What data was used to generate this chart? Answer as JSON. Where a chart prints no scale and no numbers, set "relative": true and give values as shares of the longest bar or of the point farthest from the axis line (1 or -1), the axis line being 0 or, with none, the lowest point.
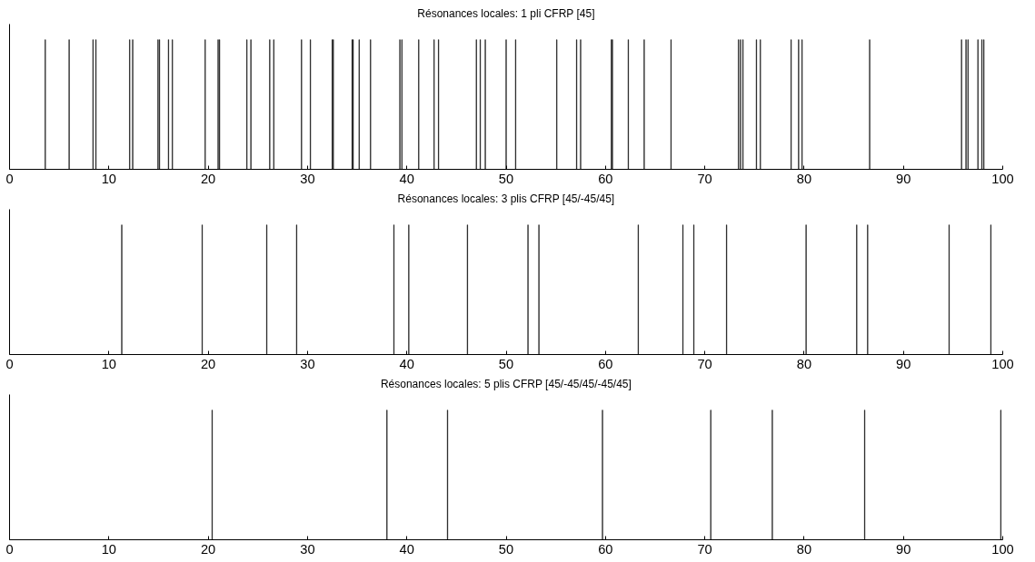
{
  "chart_data": [
    {
      "type": "bar",
      "title": "Résonances locales: 1 pli CFRP [45]",
      "relative": true,
      "color": "#000000",
      "xlim": [
        0,
        100
      ],
      "xticks": [
        0,
        10,
        20,
        30,
        40,
        50,
        60,
        70,
        80,
        90,
        100
      ],
      "tick_labels": "x",
      "x": [
        3.6,
        6.0,
        8.4,
        8.7,
        12.1,
        12.4,
        14.95,
        15.1,
        16.0,
        16.4,
        19.7,
        21.0,
        21.15,
        23.9,
        24.3,
        26.2,
        26.6,
        29.4,
        30.3,
        32.5,
        32.6,
        34.5,
        34.6,
        35.2,
        36.35,
        39.3,
        39.5,
        41.2,
        42.75,
        43.2,
        47.0,
        47.4,
        47.9,
        50.0,
        50.95,
        55.1,
        57.1,
        57.5,
        60.6,
        60.7,
        62.3,
        63.9,
        66.6,
        73.4,
        73.6,
        73.85,
        75.2,
        75.6,
        78.7,
        79.45,
        79.8,
        86.6,
        95.85,
        96.3,
        96.5,
        97.5,
        97.9,
        98.1
      ],
      "values": [
        1,
        1,
        1,
        1,
        1,
        1,
        1,
        1,
        1,
        1,
        1,
        1,
        1,
        1,
        1,
        1,
        1,
        1,
        1,
        1,
        1,
        1,
        1,
        1,
        1,
        1,
        1,
        1,
        1,
        1,
        1,
        1,
        1,
        1,
        1,
        1,
        1,
        1,
        1,
        1,
        1,
        1,
        1,
        1,
        1,
        1,
        1,
        1,
        1,
        1,
        1,
        1,
        1,
        1,
        1,
        1,
        1,
        1
      ]
    },
    {
      "type": "bar",
      "title": "Résonances locales: 3 plis CFRP [45/-45/45]",
      "relative": true,
      "color": "#000000",
      "xlim": [
        0,
        100
      ],
      "xticks": [
        0,
        10,
        20,
        30,
        40,
        50,
        60,
        70,
        80,
        90,
        100
      ],
      "tick_labels": "x",
      "x": [
        11.3,
        19.4,
        25.9,
        28.9,
        38.7,
        40.2,
        46.1,
        52.2,
        53.3,
        63.3,
        67.8,
        68.9,
        72.2,
        80.2,
        85.3,
        86.4,
        94.6,
        98.8
      ],
      "values": [
        1,
        1,
        1,
        1,
        1,
        1,
        1,
        1,
        1,
        1,
        1,
        1,
        1,
        1,
        1,
        1,
        1,
        1
      ]
    },
    {
      "type": "bar",
      "title": "Résonances locales: 5 plis CFRP [45/-45/45/-45/45]",
      "relative": true,
      "color": "#000000",
      "xlim": [
        0,
        100
      ],
      "xticks": [
        0,
        10,
        20,
        30,
        40,
        50,
        60,
        70,
        80,
        90,
        100
      ],
      "tick_labels": "x",
      "x": [
        20.4,
        38.0,
        44.1,
        59.7,
        70.6,
        76.8,
        86.1,
        99.8
      ],
      "values": [
        1,
        1,
        1,
        1,
        1,
        1,
        1,
        1
      ]
    }
  ]
}
